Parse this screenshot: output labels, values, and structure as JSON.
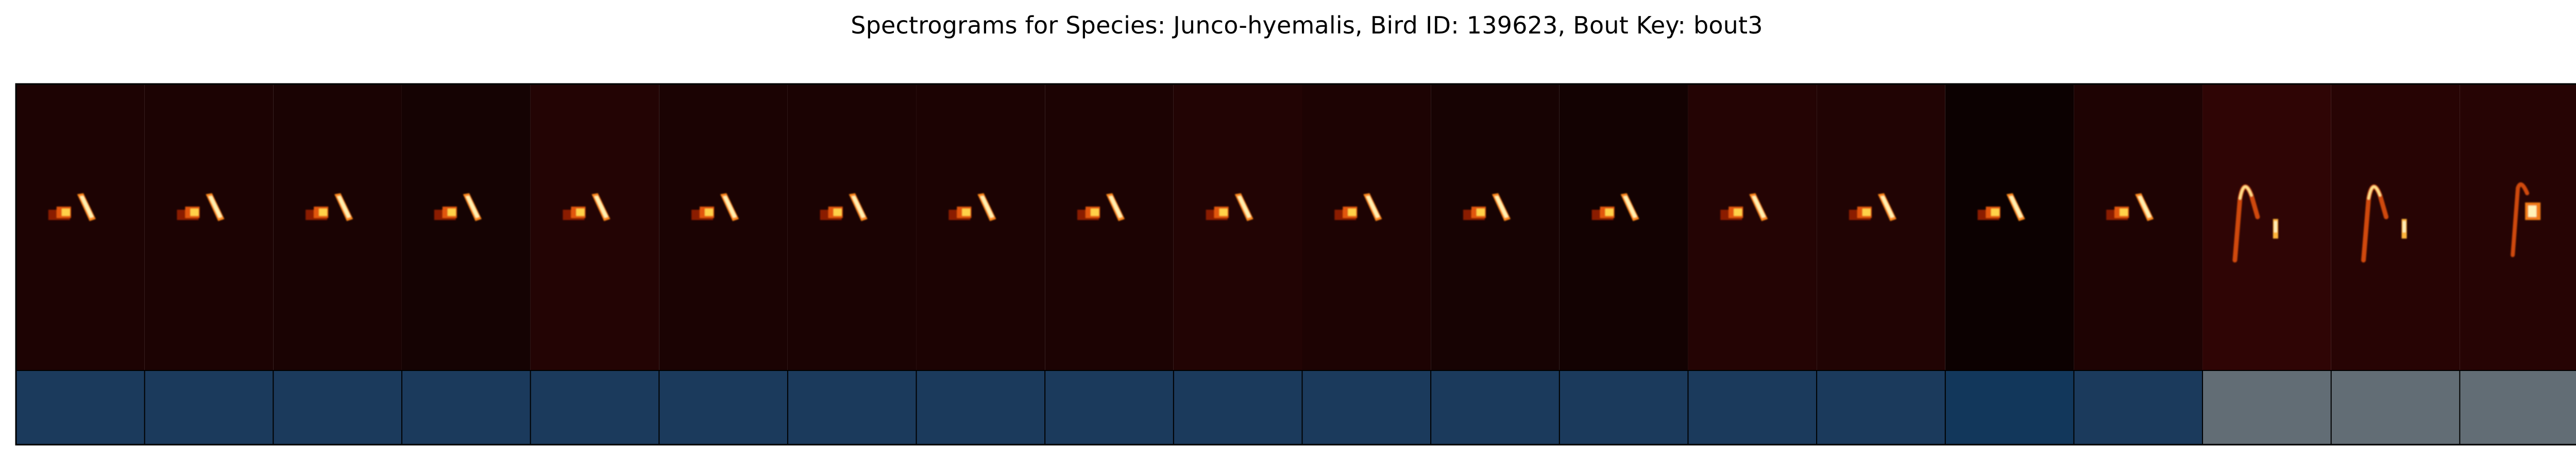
{
  "title": "Spectrograms for Species: Junco-hyemalis, Bird ID: 139623, Bout Key: bout3",
  "panels": [
    {
      "bg": "#1d0303",
      "label": "#1b3a5c",
      "shape": "a"
    },
    {
      "bg": "#1c0303",
      "label": "#1b3a5c",
      "shape": "a"
    },
    {
      "bg": "#1a0303",
      "label": "#1b3a5c",
      "shape": "a"
    },
    {
      "bg": "#150303",
      "label": "#1b3a5c",
      "shape": "a"
    },
    {
      "bg": "#230404",
      "label": "#1b3a5c",
      "shape": "a"
    },
    {
      "bg": "#1b0303",
      "label": "#1b3a5c",
      "shape": "a"
    },
    {
      "bg": "#1b0303",
      "label": "#1b3a5c",
      "shape": "a"
    },
    {
      "bg": "#1c0303",
      "label": "#1b3a5c",
      "shape": "a"
    },
    {
      "bg": "#1c0303",
      "label": "#1b3a5c",
      "shape": "a"
    },
    {
      "bg": "#220404",
      "label": "#1b3a5c",
      "shape": "a"
    },
    {
      "bg": "#1d0303",
      "label": "#1b3a5c",
      "shape": "a"
    },
    {
      "bg": "#170303",
      "label": "#1b3a5c",
      "shape": "a"
    },
    {
      "bg": "#130202",
      "label": "#1b3a5c",
      "shape": "a"
    },
    {
      "bg": "#240404",
      "label": "#1b3a5c",
      "shape": "a"
    },
    {
      "bg": "#210404",
      "label": "#1b3a5c",
      "shape": "a"
    },
    {
      "bg": "#0c0101",
      "label": "#12375b",
      "shape": "a"
    },
    {
      "bg": "#1e0303",
      "label": "#1b3a5c",
      "shape": "a"
    },
    {
      "bg": "#2f0505",
      "label": "#626d75",
      "shape": "b"
    },
    {
      "bg": "#270404",
      "label": "#626d75",
      "shape": "b"
    },
    {
      "bg": "#260404",
      "label": "#626d75",
      "shape": "c"
    }
  ]
}
